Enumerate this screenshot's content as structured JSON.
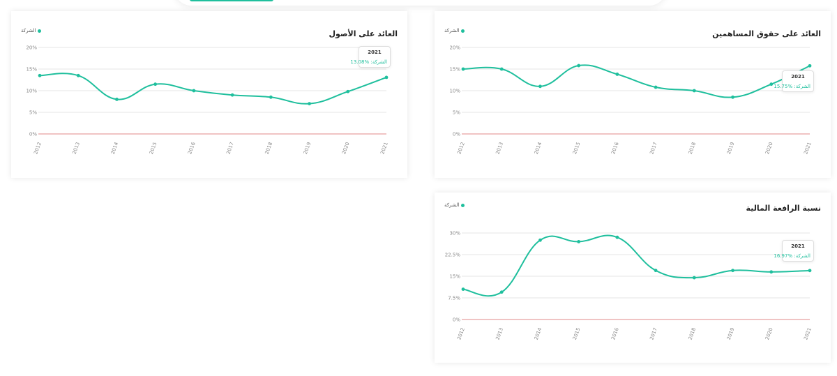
{
  "series_label": "الشركة",
  "colors": {
    "line": "#1fbf9d",
    "zero_line": "#e08a8a",
    "grid": "#e6e6e6"
  },
  "charts": [
    {
      "title": "العائد على حقوق المساهمين",
      "tooltip": {
        "year": "2021",
        "label": "الشركة:",
        "value": "%15.75"
      },
      "chart_data": {
        "type": "line",
        "categories": [
          "2012",
          "2013",
          "2014",
          "2015",
          "2016",
          "2017",
          "2018",
          "2019",
          "2020",
          "2021"
        ],
        "series": [
          {
            "name": "الشركة",
            "values": [
              15.0,
              15.0,
              11.0,
              15.8,
              13.8,
              10.8,
              10.0,
              8.5,
              11.5,
              15.75
            ]
          }
        ],
        "yticks": [
          "0%",
          "5%",
          "10%",
          "15%",
          "20%"
        ],
        "ylim": [
          0,
          20
        ]
      }
    },
    {
      "title": "العائد على الأصول",
      "tooltip": {
        "year": "2021",
        "label": "الشركة:",
        "value": "%13.08"
      },
      "chart_data": {
        "type": "line",
        "categories": [
          "2012",
          "2013",
          "2014",
          "2015",
          "2016",
          "2017",
          "2018",
          "2019",
          "2020",
          "2021"
        ],
        "series": [
          {
            "name": "الشركة",
            "values": [
              13.5,
              13.5,
              8.0,
              11.5,
              10.0,
              9.0,
              8.5,
              7.0,
              9.8,
              13.08
            ]
          }
        ],
        "yticks": [
          "0%",
          "5%",
          "10%",
          "15%",
          "20%"
        ],
        "ylim": [
          0,
          20
        ]
      }
    },
    {
      "title": "نسبة الرافعة المالية",
      "tooltip": {
        "year": "2021",
        "label": "الشركة:",
        "value": "%16.97"
      },
      "chart_data": {
        "type": "line",
        "categories": [
          "2012",
          "2013",
          "2014",
          "2015",
          "2016",
          "2017",
          "2018",
          "2019",
          "2020",
          "2021"
        ],
        "series": [
          {
            "name": "الشركة",
            "values": [
              10.5,
              9.5,
              27.5,
              27.0,
              28.5,
              17.0,
              14.5,
              17.0,
              16.5,
              16.97
            ]
          }
        ],
        "yticks": [
          "0%",
          "7.5%",
          "15%",
          "22.5%",
          "30%"
        ],
        "ylim": [
          0,
          30
        ]
      }
    }
  ]
}
